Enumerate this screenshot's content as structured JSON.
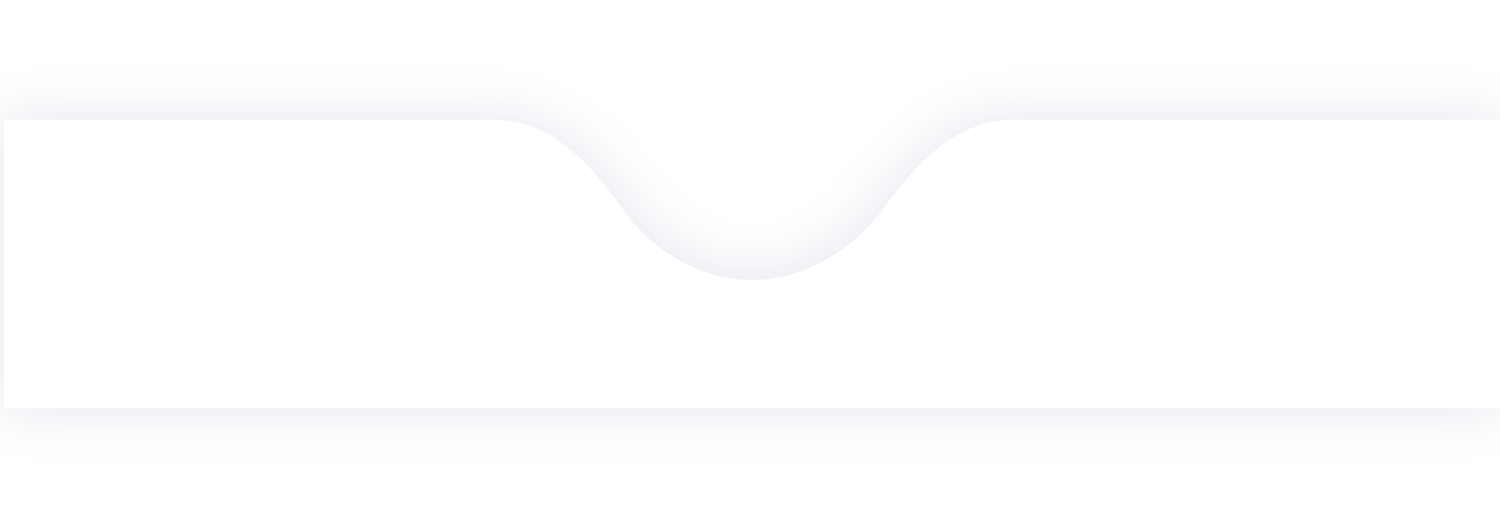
{
  "nav_bar": {
    "background_color": "#ffffff",
    "shadow_color": "#e4e5ee",
    "page_background": "#ffffff",
    "notch_position": "center"
  }
}
